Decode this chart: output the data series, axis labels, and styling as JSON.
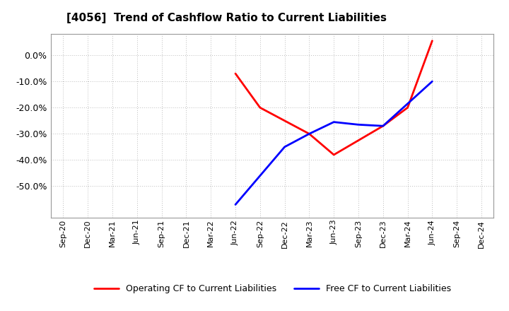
{
  "title": "[4056]  Trend of Cashflow Ratio to Current Liabilities",
  "x_labels": [
    "Sep-20",
    "Dec-20",
    "Mar-21",
    "Jun-21",
    "Sep-21",
    "Dec-21",
    "Mar-22",
    "Jun-22",
    "Sep-22",
    "Dec-22",
    "Mar-23",
    "Jun-23",
    "Sep-23",
    "Dec-23",
    "Mar-24",
    "Jun-24",
    "Sep-24",
    "Dec-24"
  ],
  "operating_cf": {
    "x_indices": [
      7,
      8,
      10,
      11,
      13,
      14,
      15
    ],
    "y_values": [
      -0.07,
      -0.2,
      -0.3,
      -0.38,
      -0.27,
      -0.2,
      0.055
    ]
  },
  "free_cf": {
    "x_indices": [
      7,
      9,
      10,
      11,
      12,
      13,
      15
    ],
    "y_values": [
      -0.57,
      -0.35,
      -0.3,
      -0.255,
      -0.265,
      -0.27,
      -0.1
    ]
  },
  "ylim_min": -0.62,
  "ylim_max": 0.08,
  "yticks": [
    0.0,
    -0.1,
    -0.2,
    -0.3,
    -0.4,
    -0.5
  ],
  "operating_color": "#ff0000",
  "free_color": "#0000ff",
  "background_color": "#ffffff",
  "plot_bg_color": "#ffffff",
  "grid_color": "#bbbbbb",
  "legend_operating": "Operating CF to Current Liabilities",
  "legend_free": "Free CF to Current Liabilities",
  "title_fontsize": 11,
  "tick_fontsize": 8,
  "legend_fontsize": 9,
  "linewidth": 2.0
}
